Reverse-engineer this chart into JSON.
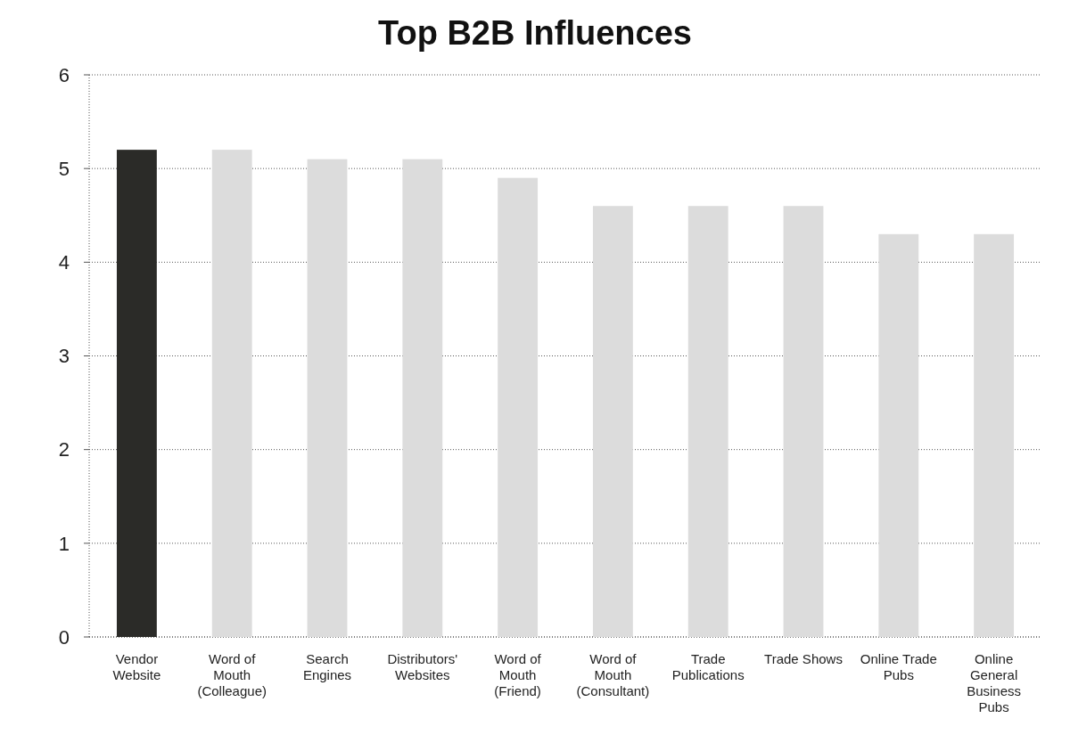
{
  "chart_data": {
    "type": "bar",
    "title": "Top B2B Influences",
    "categories": [
      "Vendor Website",
      "Word of Mouth (Colleague)",
      "Search Engines",
      "Distributors' Websites",
      "Word of Mouth (Friend)",
      "Word of Mouth (Consultant)",
      "Trade Publications",
      "Trade Shows",
      "Online Trade Pubs",
      "Online General Business Pubs"
    ],
    "values": [
      5.2,
      5.2,
      5.1,
      5.1,
      4.9,
      4.6,
      4.6,
      4.6,
      4.3,
      4.3
    ],
    "colors": [
      "#2b2b28",
      "#dcdcdc",
      "#dcdcdc",
      "#dcdcdc",
      "#dcdcdc",
      "#dcdcdc",
      "#dcdcdc",
      "#dcdcdc",
      "#dcdcdc",
      "#dcdcdc"
    ],
    "ylim": [
      0,
      6
    ],
    "yticks": [
      0,
      1,
      2,
      3,
      4,
      5,
      6
    ],
    "grid": "y"
  }
}
